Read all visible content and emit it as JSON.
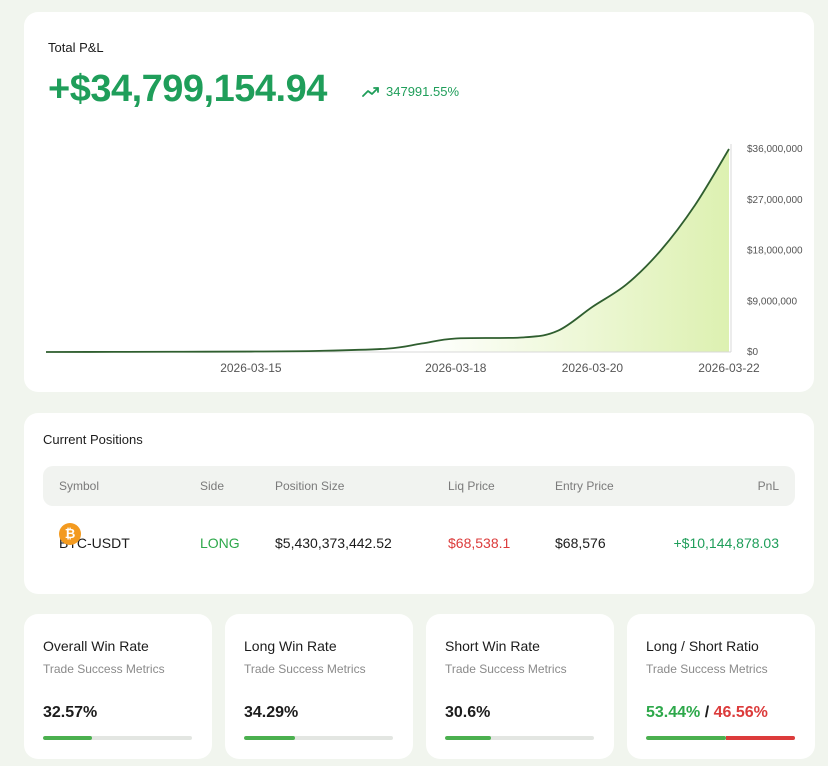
{
  "pnl": {
    "title": "Total P&L",
    "value": "+$34,799,154.94",
    "change_percent": "347991.55%",
    "change_icon": "trending-up-icon",
    "color": "#1f9e5a"
  },
  "chart_data": {
    "type": "area",
    "x_ticks": [
      "2026-03-15",
      "2026-03-18",
      "2026-03-20",
      "2026-03-22"
    ],
    "y_ticks": [
      "$0",
      "$9,000,000",
      "$18,000,000",
      "$27,000,000",
      "$36,000,000"
    ],
    "ylim": [
      0,
      36000000
    ],
    "xlim": [
      "2026-03-12",
      "2026-03-22"
    ],
    "series": [
      {
        "x": [
          "2026-03-12",
          "2026-03-13",
          "2026-03-14",
          "2026-03-15",
          "2026-03-16",
          "2026-03-17",
          "2026-03-17T12",
          "2026-03-18",
          "2026-03-19",
          "2026-03-19T12",
          "2026-03-20",
          "2026-03-20T12",
          "2026-03-21",
          "2026-03-21T12",
          "2026-03-22"
        ],
        "y": [
          0,
          20000,
          50000,
          80000,
          200000,
          600000,
          1500000,
          2400000,
          2600000,
          3800000,
          8000000,
          12000000,
          18000000,
          26000000,
          36000000
        ]
      }
    ],
    "line_color": "#2f5e2f",
    "fill_color": "#d9efa8"
  },
  "positions": {
    "title": "Current Positions",
    "columns": [
      "Symbol",
      "Side",
      "Position Size",
      "Liq Price",
      "Entry Price",
      "PnL"
    ],
    "rows": [
      {
        "symbol": "BTC-USDT",
        "icon": "bitcoin-icon",
        "icon_glyph": "₿",
        "side": "LONG",
        "position_size": "$5,430,373,442.52",
        "liq_price": "$68,538.1",
        "entry_price": "$68,576",
        "pnl": "+$10,144,878.03"
      }
    ]
  },
  "stats": [
    {
      "title": "Overall Win Rate",
      "subtitle": "Trade Success Metrics",
      "value": "32.57%",
      "fill": 0.3257
    },
    {
      "title": "Long Win Rate",
      "subtitle": "Trade Success Metrics",
      "value": "34.29%",
      "fill": 0.3429
    },
    {
      "title": "Short Win Rate",
      "subtitle": "Trade Success Metrics",
      "value": "30.6%",
      "fill": 0.306
    },
    {
      "title": "Long / Short Ratio",
      "subtitle": "Trade Success Metrics",
      "long_value": "53.44%",
      "separator": "/",
      "short_value": "46.56%",
      "long_fill": 0.5344
    }
  ]
}
